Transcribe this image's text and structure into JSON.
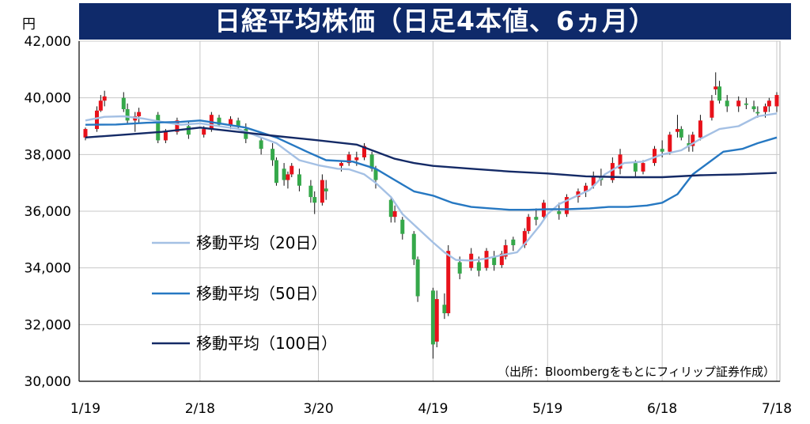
{
  "title": "日経平均株価（日足4本値、6ヵ月）",
  "unit": "円",
  "source": "（出所：Bloombergをもとにフィリップ証券作成）",
  "colors": {
    "title_bg": "#0f2a6a",
    "up": "#e8111a",
    "down": "#35a84a",
    "ma20": "#a4c0e4",
    "ma50": "#2678c2",
    "ma100": "#142a66",
    "grid": "#c8c8c8"
  },
  "chart_data": {
    "type": "candlestick",
    "xlabel": "",
    "ylabel": "円",
    "ylim": [
      30000,
      42000
    ],
    "y_ticks": [
      {
        "value": 30000,
        "label": "30,000"
      },
      {
        "value": 32000,
        "label": "32,000"
      },
      {
        "value": 34000,
        "label": "34,000"
      },
      {
        "value": 36000,
        "label": "36,000"
      },
      {
        "value": 38000,
        "label": "38,000"
      },
      {
        "value": 40000,
        "label": "40,000"
      },
      {
        "value": 42000,
        "label": "42,000"
      }
    ],
    "x_ticks": [
      {
        "date": "2024-01-19",
        "label": "1/19"
      },
      {
        "date": "2024-02-18",
        "label": "2/18"
      },
      {
        "date": "2024-03-20",
        "label": "3/20"
      },
      {
        "date": "2024-04-19",
        "label": "4/19"
      },
      {
        "date": "2024-05-19",
        "label": "5/19"
      },
      {
        "date": "2024-06-18",
        "label": "6/18"
      },
      {
        "date": "2024-07-18",
        "label": "7/18"
      }
    ],
    "grid": true,
    "legend_position": "lower-left",
    "series": [
      {
        "name": "移動平均（20日）",
        "key": "ma20",
        "points": [
          [
            "2024-01-19",
            39200
          ],
          [
            "2024-01-24",
            39330
          ],
          [
            "2024-01-29",
            39350
          ],
          [
            "2024-02-03",
            39270
          ],
          [
            "2024-02-08",
            39150
          ],
          [
            "2024-02-13",
            39050
          ],
          [
            "2024-02-18",
            39100
          ],
          [
            "2024-02-23",
            39000
          ],
          [
            "2024-02-28",
            38900
          ],
          [
            "2024-03-04",
            38650
          ],
          [
            "2024-03-09",
            38400
          ],
          [
            "2024-03-12",
            38100
          ],
          [
            "2024-03-15",
            37800
          ],
          [
            "2024-03-20",
            37620
          ],
          [
            "2024-03-25",
            37500
          ],
          [
            "2024-03-28",
            37480
          ],
          [
            "2024-04-01",
            37300
          ],
          [
            "2024-04-04",
            37000
          ],
          [
            "2024-04-08",
            36500
          ],
          [
            "2024-04-11",
            35900
          ],
          [
            "2024-04-15",
            35400
          ],
          [
            "2024-04-19",
            34900
          ],
          [
            "2024-04-22",
            34550
          ],
          [
            "2024-04-25",
            34280
          ],
          [
            "2024-04-29",
            34260
          ],
          [
            "2024-05-03",
            34330
          ],
          [
            "2024-05-07",
            34450
          ],
          [
            "2024-05-11",
            34550
          ],
          [
            "2024-05-14",
            35000
          ],
          [
            "2024-05-17",
            35500
          ],
          [
            "2024-05-19",
            35900
          ],
          [
            "2024-05-22",
            36250
          ],
          [
            "2024-05-26",
            36500
          ],
          [
            "2024-05-30",
            36750
          ],
          [
            "2024-06-03",
            37300
          ],
          [
            "2024-06-08",
            37700
          ],
          [
            "2024-06-13",
            37750
          ],
          [
            "2024-06-18",
            38000
          ],
          [
            "2024-06-23",
            38150
          ],
          [
            "2024-06-28",
            38550
          ],
          [
            "2024-07-03",
            38900
          ],
          [
            "2024-07-08",
            39000
          ],
          [
            "2024-07-13",
            39350
          ],
          [
            "2024-07-18",
            39450
          ]
        ]
      },
      {
        "name": "移動平均（50日）",
        "key": "ma50",
        "points": [
          [
            "2024-01-19",
            39050
          ],
          [
            "2024-01-27",
            39060
          ],
          [
            "2024-02-04",
            39120
          ],
          [
            "2024-02-13",
            39150
          ],
          [
            "2024-02-18",
            39200
          ],
          [
            "2024-02-23",
            39100
          ],
          [
            "2024-03-01",
            38950
          ],
          [
            "2024-03-09",
            38600
          ],
          [
            "2024-03-17",
            38100
          ],
          [
            "2024-03-22",
            37800
          ],
          [
            "2024-03-29",
            37750
          ],
          [
            "2024-04-04",
            37500
          ],
          [
            "2024-04-09",
            37100
          ],
          [
            "2024-04-14",
            36700
          ],
          [
            "2024-04-19",
            36550
          ],
          [
            "2024-04-24",
            36300
          ],
          [
            "2024-04-29",
            36150
          ],
          [
            "2024-05-04",
            36100
          ],
          [
            "2024-05-09",
            36050
          ],
          [
            "2024-05-14",
            36050
          ],
          [
            "2024-05-19",
            36070
          ],
          [
            "2024-05-24",
            36070
          ],
          [
            "2024-05-30",
            36100
          ],
          [
            "2024-06-04",
            36150
          ],
          [
            "2024-06-09",
            36150
          ],
          [
            "2024-06-14",
            36200
          ],
          [
            "2024-06-18",
            36300
          ],
          [
            "2024-06-22",
            36600
          ],
          [
            "2024-06-26",
            37300
          ],
          [
            "2024-06-30",
            37700
          ],
          [
            "2024-07-04",
            38100
          ],
          [
            "2024-07-09",
            38200
          ],
          [
            "2024-07-13",
            38400
          ],
          [
            "2024-07-18",
            38600
          ]
        ]
      },
      {
        "name": "移動平均（100日）",
        "key": "ma100",
        "points": [
          [
            "2024-01-19",
            38600
          ],
          [
            "2024-01-29",
            38700
          ],
          [
            "2024-02-08",
            38800
          ],
          [
            "2024-02-18",
            38950
          ],
          [
            "2024-02-28",
            38800
          ],
          [
            "2024-03-09",
            38650
          ],
          [
            "2024-03-20",
            38500
          ],
          [
            "2024-03-30",
            38350
          ],
          [
            "2024-04-04",
            38100
          ],
          [
            "2024-04-09",
            37850
          ],
          [
            "2024-04-14",
            37700
          ],
          [
            "2024-04-19",
            37600
          ],
          [
            "2024-04-29",
            37500
          ],
          [
            "2024-05-09",
            37400
          ],
          [
            "2024-05-19",
            37330
          ],
          [
            "2024-05-29",
            37230
          ],
          [
            "2024-06-08",
            37200
          ],
          [
            "2024-06-18",
            37200
          ],
          [
            "2024-06-28",
            37270
          ],
          [
            "2024-07-08",
            37300
          ],
          [
            "2024-07-18",
            37350
          ]
        ]
      }
    ],
    "candles_ohlc_by_date": [
      [
        "2024-01-19",
        38600,
        38950,
        38500,
        38900
      ],
      [
        "2024-01-22",
        38900,
        39700,
        38800,
        39550
      ],
      [
        "2024-01-23",
        39550,
        40100,
        39500,
        39900
      ],
      [
        "2024-01-24",
        39900,
        40250,
        39700,
        40050
      ],
      [
        "2024-01-29",
        40000,
        40200,
        39500,
        39600
      ],
      [
        "2024-01-30",
        39600,
        39800,
        39100,
        39200
      ],
      [
        "2024-02-01",
        39200,
        39500,
        38800,
        39350
      ],
      [
        "2024-02-02",
        39350,
        39650,
        39100,
        39500
      ],
      [
        "2024-02-07",
        39400,
        39500,
        38400,
        38500
      ],
      [
        "2024-02-09",
        38500,
        38900,
        38400,
        38800
      ],
      [
        "2024-02-12",
        38800,
        39300,
        38700,
        39200
      ],
      [
        "2024-02-15",
        39000,
        39150,
        38550,
        38700
      ],
      [
        "2024-02-19",
        38700,
        39000,
        38600,
        38900
      ],
      [
        "2024-02-21",
        38900,
        39500,
        38800,
        39400
      ],
      [
        "2024-02-23",
        39300,
        39400,
        39000,
        39050
      ],
      [
        "2024-02-26",
        39050,
        39350,
        38900,
        39250
      ],
      [
        "2024-02-28",
        39200,
        39300,
        38900,
        39000
      ],
      [
        "2024-03-01",
        38900,
        39100,
        38400,
        38550
      ],
      [
        "2024-03-05",
        38500,
        38600,
        38000,
        38200
      ],
      [
        "2024-03-08",
        38200,
        38400,
        37600,
        37800
      ],
      [
        "2024-03-09",
        37800,
        37900,
        36900,
        37000
      ],
      [
        "2024-03-11",
        37500,
        37700,
        36900,
        37100
      ],
      [
        "2024-03-12",
        37100,
        37400,
        36800,
        37300
      ],
      [
        "2024-03-13",
        37300,
        37700,
        37200,
        37600
      ],
      [
        "2024-03-15",
        37300,
        37500,
        36700,
        36900
      ],
      [
        "2024-03-18",
        36900,
        37100,
        36300,
        36500
      ],
      [
        "2024-03-19",
        36500,
        36700,
        35900,
        36300
      ],
      [
        "2024-03-21",
        36300,
        37300,
        36200,
        37100
      ],
      [
        "2024-03-22",
        36800,
        37100,
        36400,
        36700
      ],
      [
        "2024-03-26",
        37600,
        37800,
        37400,
        37700
      ],
      [
        "2024-03-28",
        37700,
        38100,
        37600,
        38000
      ],
      [
        "2024-03-30",
        37800,
        38100,
        37600,
        37900
      ],
      [
        "2024-04-01",
        37900,
        38400,
        37800,
        38300
      ],
      [
        "2024-04-03",
        38000,
        38100,
        37400,
        37500
      ],
      [
        "2024-04-04",
        37500,
        37600,
        36800,
        37100
      ],
      [
        "2024-04-08",
        36400,
        36500,
        35600,
        35800
      ],
      [
        "2024-04-09",
        35800,
        36200,
        35600,
        36000
      ],
      [
        "2024-04-11",
        35700,
        35800,
        35000,
        35200
      ],
      [
        "2024-04-14",
        35200,
        35300,
        34100,
        34300
      ],
      [
        "2024-04-15",
        34300,
        34400,
        32800,
        33000
      ],
      [
        "2024-04-19",
        33200,
        33300,
        30800,
        31300
      ],
      [
        "2024-04-20",
        31400,
        33200,
        31200,
        32900
      ],
      [
        "2024-04-22",
        32700,
        33100,
        32200,
        32400
      ],
      [
        "2024-04-23",
        32400,
        34800,
        32300,
        34600
      ],
      [
        "2024-04-26",
        34200,
        34400,
        33600,
        33800
      ],
      [
        "2024-04-29",
        34000,
        34700,
        33900,
        34500
      ],
      [
        "2024-05-01",
        34200,
        34400,
        33700,
        33900
      ],
      [
        "2024-05-03",
        34000,
        34700,
        33900,
        34600
      ],
      [
        "2024-05-05",
        34400,
        34600,
        33900,
        34100
      ],
      [
        "2024-05-07",
        34100,
        34600,
        34000,
        34500
      ],
      [
        "2024-05-08",
        34400,
        35000,
        34300,
        34800
      ],
      [
        "2024-05-10",
        35000,
        35100,
        34600,
        34800
      ],
      [
        "2024-05-13",
        34800,
        35400,
        34700,
        35300
      ],
      [
        "2024-05-14",
        35300,
        35900,
        35200,
        35800
      ],
      [
        "2024-05-16",
        35800,
        36100,
        35500,
        35700
      ],
      [
        "2024-05-18",
        35800,
        36400,
        35700,
        36300
      ],
      [
        "2024-05-22",
        36000,
        36300,
        35700,
        35900
      ],
      [
        "2024-05-24",
        35900,
        36600,
        35800,
        36500
      ],
      [
        "2024-05-27",
        36500,
        36800,
        36300,
        36700
      ],
      [
        "2024-05-29",
        36700,
        37000,
        36500,
        36900
      ],
      [
        "2024-05-31",
        36900,
        37400,
        36800,
        37200
      ],
      [
        "2024-06-02",
        37200,
        37500,
        36900,
        37100
      ],
      [
        "2024-06-05",
        37100,
        37900,
        37000,
        37700
      ],
      [
        "2024-06-07",
        37500,
        38200,
        37300,
        38000
      ],
      [
        "2024-06-11",
        37700,
        37800,
        37200,
        37400
      ],
      [
        "2024-06-13",
        37400,
        37800,
        37300,
        37700
      ],
      [
        "2024-06-16",
        37700,
        38300,
        37600,
        38200
      ],
      [
        "2024-06-18",
        38200,
        38500,
        37900,
        38100
      ],
      [
        "2024-06-20",
        38100,
        38800,
        38000,
        38700
      ],
      [
        "2024-06-22",
        38800,
        39400,
        38600,
        38900
      ],
      [
        "2024-06-23",
        38900,
        39000,
        38500,
        38600
      ],
      [
        "2024-06-25",
        38400,
        38700,
        38100,
        38300
      ],
      [
        "2024-06-26",
        38300,
        38800,
        38100,
        38700
      ],
      [
        "2024-06-28",
        38600,
        39400,
        38500,
        39200
      ],
      [
        "2024-07-01",
        39300,
        40100,
        39200,
        39900
      ],
      [
        "2024-07-02",
        40300,
        40900,
        40100,
        40400
      ],
      [
        "2024-07-03",
        40400,
        40600,
        39800,
        39900
      ],
      [
        "2024-07-05",
        39900,
        40100,
        39500,
        39700
      ],
      [
        "2024-07-08",
        39700,
        40050,
        39500,
        39900
      ],
      [
        "2024-07-10",
        39800,
        40000,
        39600,
        39750
      ],
      [
        "2024-07-12",
        39700,
        39900,
        39500,
        39600
      ],
      [
        "2024-07-13",
        39500,
        39700,
        39300,
        39450
      ],
      [
        "2024-07-15",
        39500,
        39800,
        39300,
        39700
      ],
      [
        "2024-07-16",
        39700,
        40000,
        39500,
        39900
      ],
      [
        "2024-07-18",
        39700,
        40200,
        39500,
        40100
      ]
    ]
  }
}
